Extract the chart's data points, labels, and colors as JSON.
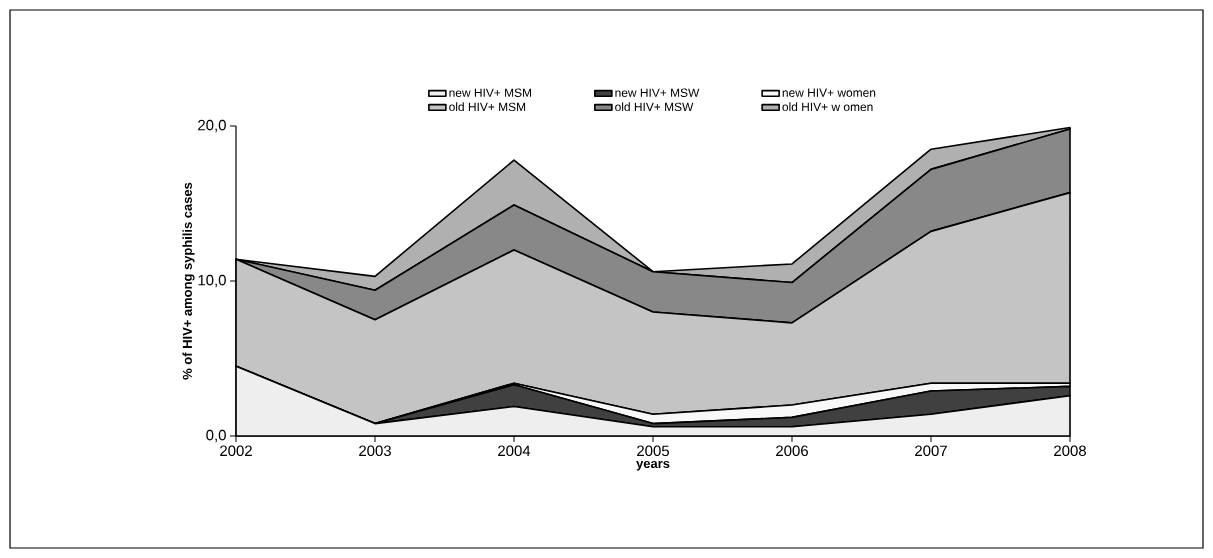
{
  "chart_data": {
    "type": "area",
    "stacked": true,
    "xlabel": "years",
    "ylabel": "% of HIV+ among syphilis cases",
    "categories": [
      "2002",
      "2003",
      "2004",
      "2005",
      "2006",
      "2007",
      "2008"
    ],
    "series": [
      {
        "name": "new  HIV+ MSM",
        "color": "#eeeeee",
        "values": [
          4.5,
          0.8,
          1.9,
          0.6,
          0.6,
          1.4,
          2.6
        ]
      },
      {
        "name": "new  HIV+ MSW",
        "color": "#404040",
        "values": [
          0,
          0,
          1.4,
          0.2,
          0.6,
          1.5,
          0.6
        ]
      },
      {
        "name": "new HIV+ women",
        "color": "#f8f8f8",
        "values": [
          0,
          0,
          0.1,
          0.6,
          0.8,
          0.5,
          0.2
        ]
      },
      {
        "name": "old HIV+ MSM",
        "color": "#c4c4c4",
        "values": [
          6.9,
          6.7,
          8.6,
          6.6,
          5.3,
          9.8,
          12.3
        ]
      },
      {
        "name": "old HIV+ MSW",
        "color": "#888888",
        "values": [
          0,
          1.9,
          2.9,
          2.6,
          2.6,
          4.0,
          4.1
        ]
      },
      {
        "name": "old HIV+ w omen",
        "color": "#b0b0b0",
        "values": [
          0,
          0.9,
          2.9,
          0,
          1.2,
          1.3,
          0.1
        ]
      }
    ],
    "ylim": [
      0,
      20
    ],
    "yticks": [
      {
        "value": 0,
        "label": "0,0"
      },
      {
        "value": 10,
        "label": "10,0"
      },
      {
        "value": 20,
        "label": "20,0"
      }
    ],
    "legend": "top"
  }
}
